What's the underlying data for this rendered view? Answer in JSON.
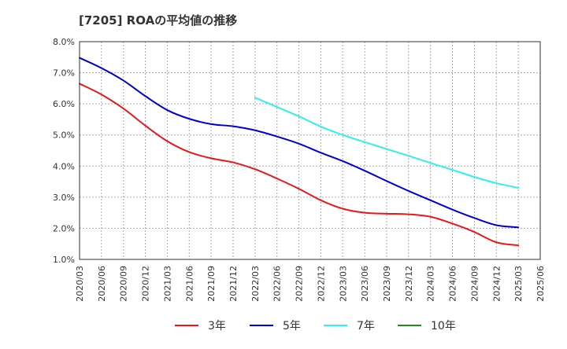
{
  "chart_data": {
    "type": "line",
    "title": "[7205]  ROAの平均値の推移",
    "xlabel": "",
    "ylabel": "",
    "y_tick_labels": [
      "1.0%",
      "2.0%",
      "3.0%",
      "4.0%",
      "5.0%",
      "6.0%",
      "7.0%",
      "8.0%"
    ],
    "ylim": [
      1.0,
      8.0
    ],
    "y_unit": "%",
    "grid": true,
    "legend_position": "bottom",
    "categories": [
      "2020/03",
      "2020/06",
      "2020/09",
      "2020/12",
      "2021/03",
      "2021/06",
      "2021/09",
      "2021/12",
      "2022/03",
      "2022/06",
      "2022/09",
      "2022/12",
      "2023/03",
      "2023/06",
      "2023/09",
      "2023/12",
      "2024/03",
      "2024/06",
      "2024/09",
      "2024/12",
      "2025/03",
      "2025/06"
    ],
    "series": [
      {
        "name": "3年",
        "color": "#e31a1c",
        "values": [
          6.65,
          6.3,
          5.85,
          5.3,
          4.8,
          4.45,
          4.25,
          4.12,
          3.9,
          3.6,
          3.27,
          2.9,
          2.63,
          2.5,
          2.47,
          2.45,
          2.37,
          2.15,
          1.88,
          1.55,
          1.45,
          null
        ]
      },
      {
        "name": "5年",
        "color": "#0000cc",
        "values": [
          7.48,
          7.15,
          6.75,
          6.25,
          5.8,
          5.52,
          5.35,
          5.28,
          5.15,
          4.95,
          4.72,
          4.43,
          4.16,
          3.85,
          3.52,
          3.2,
          2.9,
          2.6,
          2.33,
          2.1,
          2.03,
          null
        ]
      },
      {
        "name": "7年",
        "color": "#33eeee",
        "values": [
          null,
          null,
          null,
          null,
          null,
          null,
          null,
          null,
          6.2,
          5.9,
          5.6,
          5.27,
          5.0,
          4.77,
          4.55,
          4.33,
          4.1,
          3.88,
          3.65,
          3.45,
          3.3,
          null
        ]
      },
      {
        "name": "10年",
        "color": "#228b22",
        "values": [
          null,
          null,
          null,
          null,
          null,
          null,
          null,
          null,
          null,
          null,
          null,
          null,
          null,
          null,
          null,
          null,
          null,
          null,
          null,
          null,
          null,
          null
        ]
      }
    ]
  }
}
